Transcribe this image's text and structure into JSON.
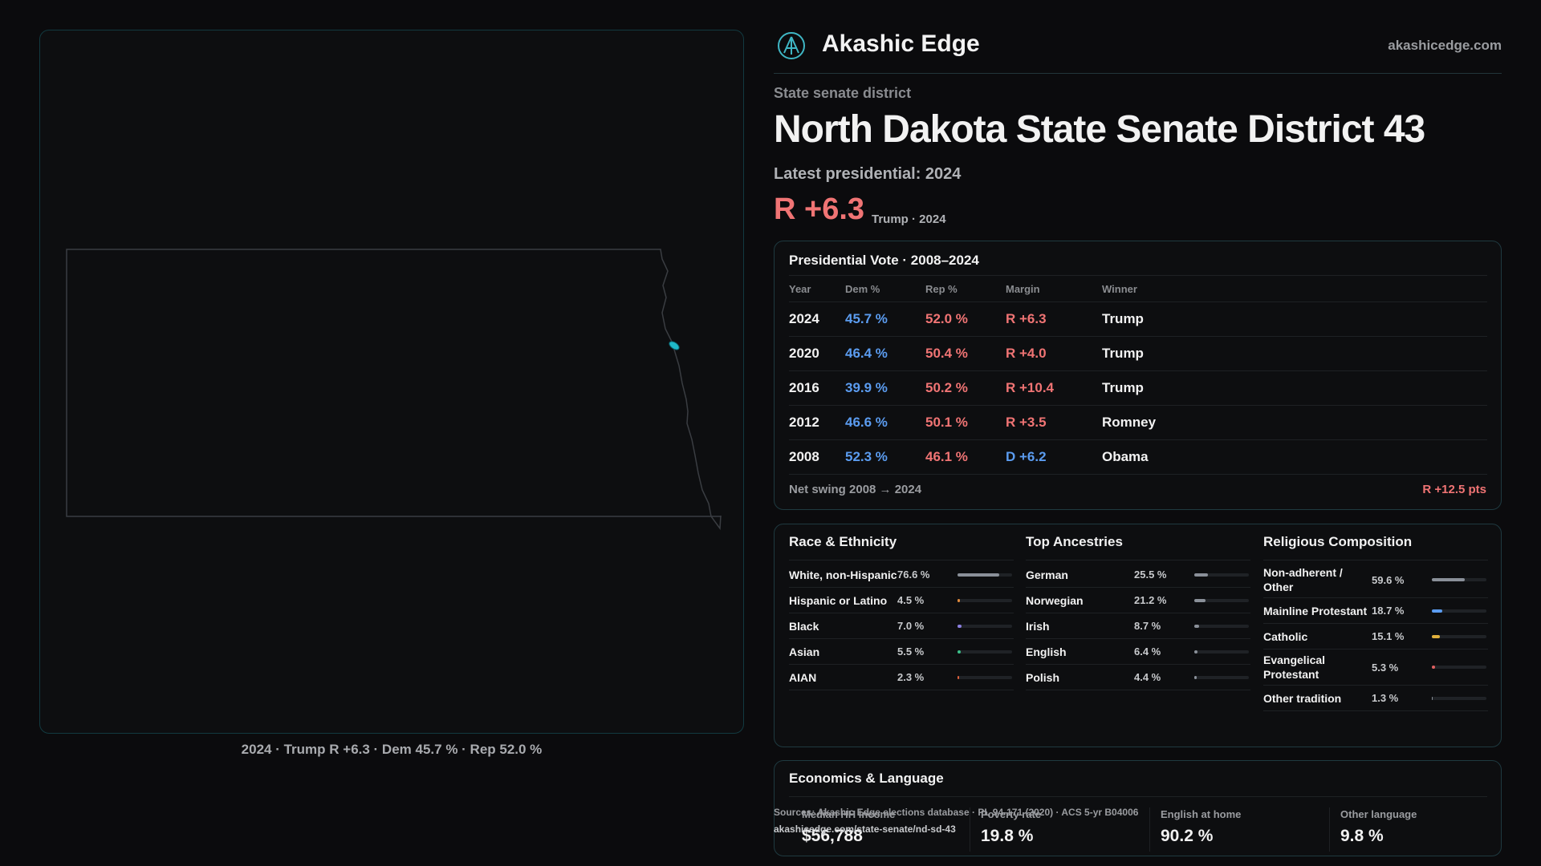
{
  "header": {
    "brand": "Akashic Edge",
    "domain": "akashicedge.com"
  },
  "district": {
    "kind": "State senate district",
    "title": "North Dakota State Senate District 43",
    "latest": "Latest presidential: 2024",
    "margin": "R +6.3",
    "margin_note": "Trump · 2024"
  },
  "map": {
    "caption": "2024 · Trump R +6.3 · Dem 45.7 % · Rep 52.0 %"
  },
  "presidential": {
    "title": "Presidential Vote · 2008–2024",
    "columns": [
      "Year",
      "Dem %",
      "Rep %",
      "Margin",
      "Winner"
    ],
    "rows": [
      [
        "2024",
        "45.7 %",
        "52.0 %",
        "R +6.3",
        "Trump"
      ],
      [
        "2020",
        "46.4 %",
        "50.4 %",
        "R +4.0",
        "Trump"
      ],
      [
        "2016",
        "39.9 %",
        "50.2 %",
        "R +10.4",
        "Trump"
      ],
      [
        "2012",
        "46.6 %",
        "50.1 %",
        "R +3.5",
        "Romney"
      ],
      [
        "2008",
        "52.3 %",
        "46.1 %",
        "D +6.2",
        "Obama"
      ]
    ],
    "swing_label": "Net swing 2008 → 2024",
    "swing_value": "R +12.5 pts"
  },
  "race": {
    "title": "Race & Ethnicity",
    "rows": [
      {
        "label": "White, non-Hispanic",
        "value": {
          "value": 76.6,
          "label": "76.6 %"
        },
        "color": "#8a9099"
      },
      {
        "label": "Hispanic or Latino",
        "value": {
          "value": 4.5,
          "label": "4.5 %"
        },
        "color": "#e08a3c"
      },
      {
        "label": "Black",
        "value": {
          "value": 7.0,
          "label": "7.0 %"
        },
        "color": "#8b7fe0"
      },
      {
        "label": "Asian",
        "value": {
          "value": 5.5,
          "label": "5.5 %"
        },
        "color": "#3cc08a"
      },
      {
        "label": "AIAN",
        "value": {
          "value": 2.3,
          "label": "2.3 %"
        },
        "color": "#e0603c"
      }
    ]
  },
  "ancestry": {
    "title": "Top Ancestries",
    "rows": [
      {
        "label": "German",
        "value": {
          "value": 25.5,
          "label": "25.5 %"
        },
        "color": "#8a9099"
      },
      {
        "label": "Norwegian",
        "value": {
          "value": 21.2,
          "label": "21.2 %"
        },
        "color": "#8a9099"
      },
      {
        "label": "Irish",
        "value": {
          "value": 8.7,
          "label": "8.7 %"
        },
        "color": "#8a9099"
      },
      {
        "label": "English",
        "value": {
          "value": 6.4,
          "label": "6.4 %"
        },
        "color": "#8a9099"
      },
      {
        "label": "Polish",
        "value": {
          "value": 4.4,
          "label": "4.4 %"
        },
        "color": "#8a9099"
      }
    ]
  },
  "religion": {
    "title": "Religious Composition",
    "rows": [
      {
        "label": "Non-adherent / Other",
        "value": {
          "value": 59.6,
          "label": "59.6 %"
        },
        "color": "#8a9099"
      },
      {
        "label": "Mainline Protestant",
        "value": {
          "value": 18.7,
          "label": "18.7 %"
        },
        "color": "#5b9cf0"
      },
      {
        "label": "Catholic",
        "value": {
          "value": 15.1,
          "label": "15.1 %"
        },
        "color": "#e0b03c"
      },
      {
        "label": "Evangelical Protestant",
        "value": {
          "value": 5.3,
          "label": "5.3 %"
        },
        "color": "#e06060"
      },
      {
        "label": "Other tradition",
        "value": {
          "value": 1.3,
          "label": "1.3 %"
        },
        "color": "#8a9099"
      }
    ]
  },
  "economics": {
    "title": "Economics & Language",
    "items": [
      {
        "label": "Median HH income",
        "value": "$56,788"
      },
      {
        "label": "Poverty rate",
        "value": "19.8 %"
      },
      {
        "label": "English at home",
        "value": "90.2 %"
      },
      {
        "label": "Other language",
        "value": "9.8 %"
      }
    ]
  },
  "source": {
    "line1": "Sources: Akashic Edge elections database · PL 94-171 (2020) · ACS 5-yr B04006",
    "line2": "akashicedge.com/state-senate/nd-sd-43"
  }
}
